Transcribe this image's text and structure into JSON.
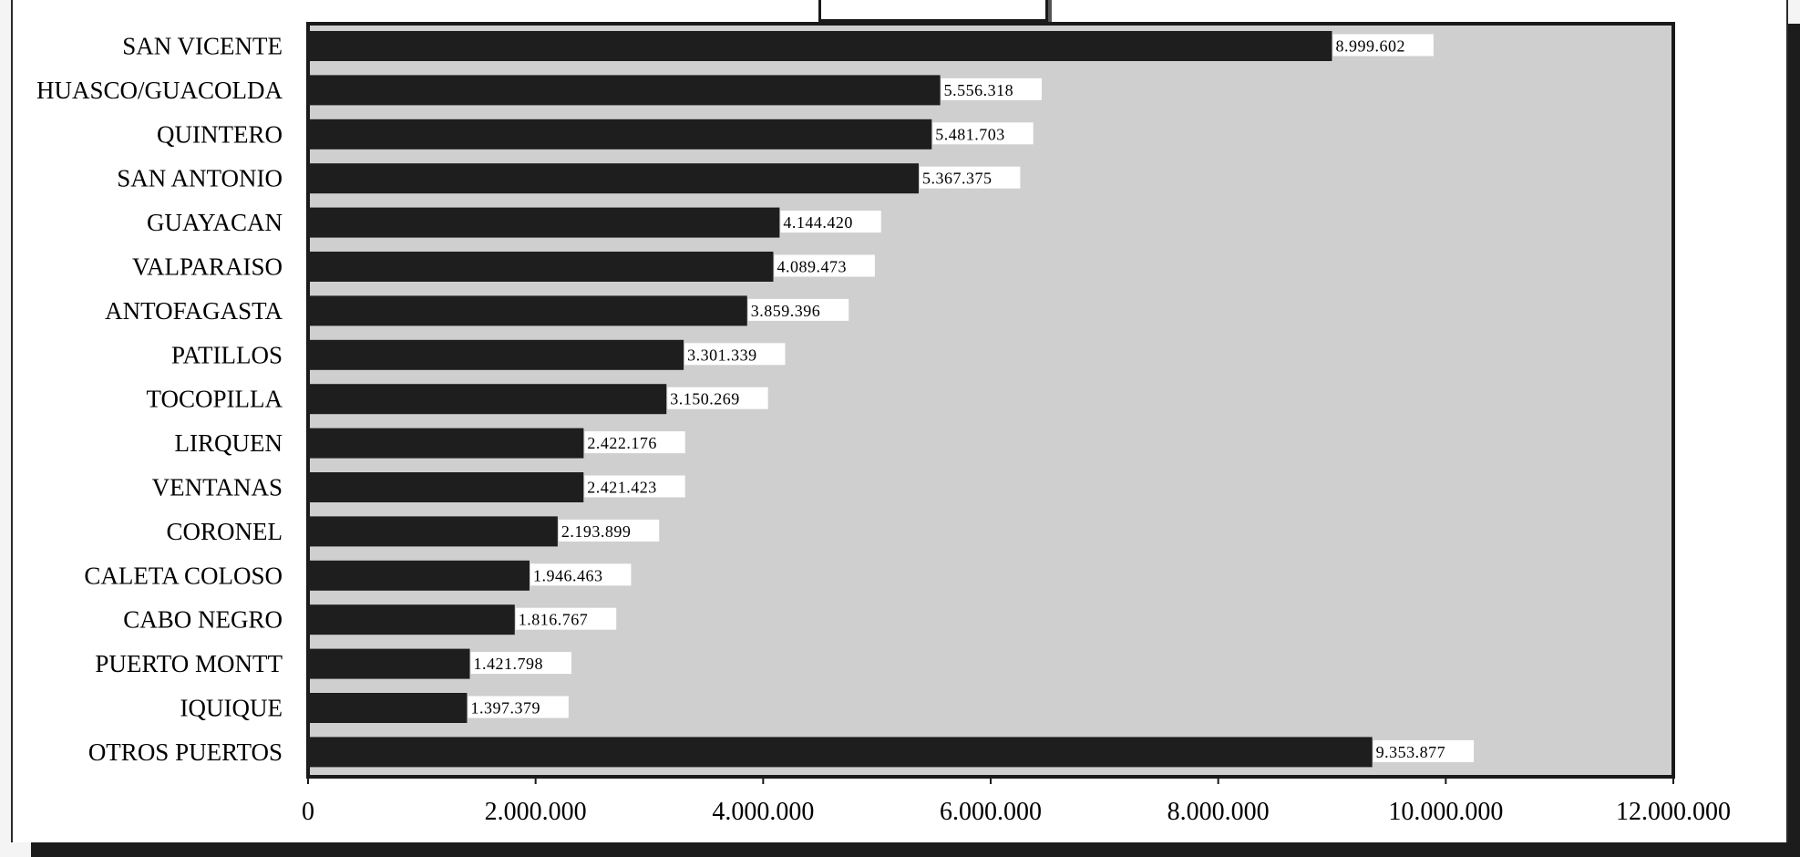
{
  "colors": {
    "bar": "#1e1e1e",
    "plot_background": "#cfcfcf",
    "frame": "#1a1a1a",
    "label_box": "#ffffff"
  },
  "chart_data": {
    "type": "bar",
    "orientation": "horizontal",
    "title": "",
    "xlabel": "",
    "ylabel": "",
    "categories": [
      "SAN VICENTE",
      "HUASCO/GUACOLDA",
      "QUINTERO",
      "SAN ANTONIO",
      "GUAYACAN",
      "VALPARAISO",
      "ANTOFAGASTA",
      "PATILLOS",
      "TOCOPILLA",
      "LIRQUEN",
      "VENTANAS",
      "CORONEL",
      "CALETA COLOSO",
      "CABO NEGRO",
      "PUERTO MONTT",
      "IQUIQUE",
      "OTROS PUERTOS"
    ],
    "values": [
      8999602,
      5556318,
      5481703,
      5367375,
      4144420,
      4089473,
      3859396,
      3301339,
      3150269,
      2422176,
      2421423,
      2193899,
      1946463,
      1816767,
      1421798,
      1397379,
      9353877
    ],
    "value_labels": [
      "8.999.602",
      "5.556.318",
      "5.481.703",
      "5.367.375",
      "4.144.420",
      "4.089.473",
      "3.859.396",
      "3.301.339",
      "3.150.269",
      "2.422.176",
      "2.421.423",
      "2.193.899",
      "1.946.463",
      "1.816.767",
      "1.421.798",
      "1.397.379",
      "9.353.877"
    ],
    "xlim": [
      0,
      12000000
    ],
    "x_ticks": [
      0,
      2000000,
      4000000,
      6000000,
      8000000,
      10000000,
      12000000
    ],
    "x_tick_labels": [
      "0",
      "2.000.000",
      "4.000.000",
      "6.000.000",
      "8.000.000",
      "10.000.000",
      "12.000.000"
    ],
    "grid": false,
    "legend": "none"
  }
}
